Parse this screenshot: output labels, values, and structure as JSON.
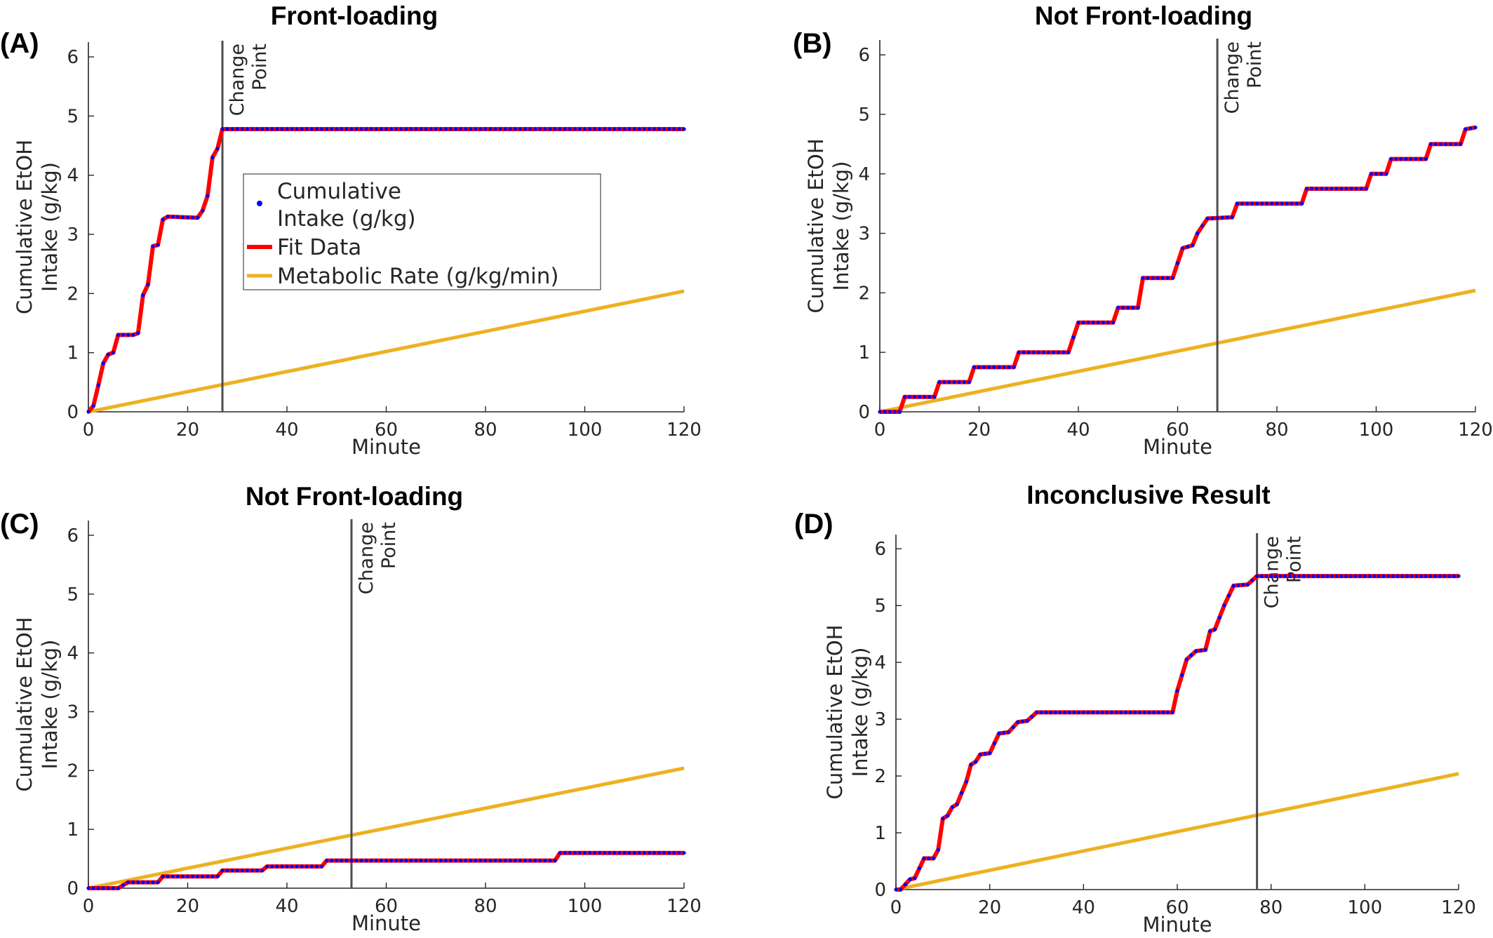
{
  "legend": {
    "entries": [
      {
        "label_line1": "Cumulative",
        "label_line2": "Intake (g/kg)",
        "kind": "marker",
        "color": "#0000ff"
      },
      {
        "label": "Fit Data",
        "kind": "line",
        "color": "#ff0000"
      },
      {
        "label": "Metabolic Rate (g/kg/min)",
        "kind": "line",
        "color": "#edb120"
      }
    ]
  },
  "colors": {
    "intake": "#0000ff",
    "fit": "#ff0000",
    "metabolic": "#edb120",
    "change_point": "#4d4d4d"
  },
  "chart_data": [
    {
      "id": "A",
      "type": "line",
      "panel_label": "(A)",
      "title": "Front-loading",
      "xlabel": "Minute",
      "ylabel_line1": "Cumulative EtOH",
      "ylabel_line2": "Intake (g/kg)",
      "xlim": [
        0,
        120
      ],
      "ylim": [
        0,
        6.25
      ],
      "xticks": [
        0,
        20,
        40,
        60,
        80,
        100,
        120
      ],
      "yticks": [
        0,
        1,
        2,
        3,
        4,
        5,
        6
      ],
      "change_point": 27,
      "change_point_label_line1": "Change",
      "change_point_label_line2": "Point",
      "metabolic_rate": {
        "x": [
          0,
          120
        ],
        "y": [
          0,
          2.04
        ]
      },
      "intake_steps": [
        [
          0,
          0
        ],
        [
          1,
          0.1
        ],
        [
          2,
          0.45
        ],
        [
          3,
          0.82
        ],
        [
          4,
          0.97
        ],
        [
          5,
          1.0
        ],
        [
          6,
          1.3
        ],
        [
          9,
          1.3
        ],
        [
          10,
          1.33
        ],
        [
          11,
          1.97
        ],
        [
          12,
          2.15
        ],
        [
          13,
          2.8
        ],
        [
          14,
          2.82
        ],
        [
          15,
          3.25
        ],
        [
          16,
          3.3
        ],
        [
          22,
          3.28
        ],
        [
          23,
          3.4
        ],
        [
          24,
          3.65
        ],
        [
          25,
          4.3
        ],
        [
          26,
          4.45
        ],
        [
          27,
          4.78
        ],
        [
          120,
          4.78
        ]
      ]
    },
    {
      "id": "B",
      "type": "line",
      "panel_label": "(B)",
      "title": "Not Front-loading",
      "xlabel": "Minute",
      "ylabel_line1": "Cumulative EtOH",
      "ylabel_line2": "Intake (g/kg)",
      "xlim": [
        0,
        120
      ],
      "ylim": [
        0,
        6.25
      ],
      "xticks": [
        0,
        20,
        40,
        60,
        80,
        100,
        120
      ],
      "yticks": [
        0,
        1,
        2,
        3,
        4,
        5,
        6
      ],
      "change_point": 68,
      "change_point_label_line1": "Change",
      "change_point_label_line2": "Point",
      "metabolic_rate": {
        "x": [
          0,
          120
        ],
        "y": [
          0,
          2.04
        ]
      },
      "intake_steps": [
        [
          0,
          0
        ],
        [
          4,
          0
        ],
        [
          5,
          0.25
        ],
        [
          11,
          0.25
        ],
        [
          12,
          0.5
        ],
        [
          18,
          0.5
        ],
        [
          19,
          0.75
        ],
        [
          27,
          0.75
        ],
        [
          28,
          1.0
        ],
        [
          38,
          1.0
        ],
        [
          39,
          1.25
        ],
        [
          40,
          1.5
        ],
        [
          47,
          1.5
        ],
        [
          48,
          1.75
        ],
        [
          52,
          1.75
        ],
        [
          53,
          2.25
        ],
        [
          59,
          2.25
        ],
        [
          60,
          2.5
        ],
        [
          61,
          2.75
        ],
        [
          63,
          2.8
        ],
        [
          64,
          3.0
        ],
        [
          66,
          3.25
        ],
        [
          71,
          3.27
        ],
        [
          72,
          3.5
        ],
        [
          85,
          3.5
        ],
        [
          86,
          3.75
        ],
        [
          98,
          3.75
        ],
        [
          99,
          4.0
        ],
        [
          102,
          4.0
        ],
        [
          103,
          4.25
        ],
        [
          110,
          4.25
        ],
        [
          111,
          4.5
        ],
        [
          117,
          4.5
        ],
        [
          118,
          4.75
        ],
        [
          120,
          4.78
        ]
      ]
    },
    {
      "id": "C",
      "type": "line",
      "panel_label": "(C)",
      "title": "Not Front-loading",
      "xlabel": "Minute",
      "ylabel_line1": "Cumulative EtOH",
      "ylabel_line2": "Intake (g/kg)",
      "xlim": [
        0,
        120
      ],
      "ylim": [
        0,
        6.25
      ],
      "xticks": [
        0,
        20,
        40,
        60,
        80,
        100,
        120
      ],
      "yticks": [
        0,
        1,
        2,
        3,
        4,
        5,
        6
      ],
      "change_point": 53,
      "change_point_label_line1": "Change",
      "change_point_label_line2": "Point",
      "metabolic_rate": {
        "x": [
          0,
          120
        ],
        "y": [
          0,
          2.04
        ]
      },
      "intake_steps": [
        [
          0,
          0
        ],
        [
          6,
          0
        ],
        [
          7,
          0.05
        ],
        [
          8,
          0.1
        ],
        [
          14,
          0.1
        ],
        [
          15,
          0.2
        ],
        [
          26,
          0.2
        ],
        [
          27,
          0.3
        ],
        [
          35,
          0.3
        ],
        [
          36,
          0.37
        ],
        [
          47,
          0.37
        ],
        [
          48,
          0.47
        ],
        [
          94,
          0.47
        ],
        [
          95,
          0.6
        ],
        [
          120,
          0.6
        ]
      ]
    },
    {
      "id": "D",
      "type": "line",
      "panel_label": "(D)",
      "title": "Inconclusive Result",
      "xlabel": "Minute",
      "ylabel_line1": "Cumulative EtOH",
      "ylabel_line2": "Intake (g/kg)",
      "xlim": [
        0,
        120
      ],
      "ylim": [
        0,
        6.25
      ],
      "xticks": [
        0,
        20,
        40,
        60,
        80,
        100,
        120
      ],
      "yticks": [
        0,
        1,
        2,
        3,
        4,
        5,
        6
      ],
      "change_point": 77,
      "change_point_label_line1": "Change",
      "change_point_label_line2": "Point",
      "metabolic_rate": {
        "x": [
          0,
          120
        ],
        "y": [
          0,
          2.04
        ]
      },
      "intake_steps": [
        [
          0,
          0
        ],
        [
          1,
          0
        ],
        [
          3,
          0.18
        ],
        [
          4,
          0.2
        ],
        [
          6,
          0.55
        ],
        [
          8,
          0.55
        ],
        [
          9,
          0.7
        ],
        [
          10,
          1.25
        ],
        [
          11,
          1.3
        ],
        [
          12,
          1.45
        ],
        [
          13,
          1.5
        ],
        [
          15,
          1.9
        ],
        [
          16,
          2.2
        ],
        [
          17,
          2.25
        ],
        [
          18,
          2.38
        ],
        [
          20,
          2.4
        ],
        [
          22,
          2.75
        ],
        [
          24,
          2.77
        ],
        [
          26,
          2.95
        ],
        [
          28,
          2.97
        ],
        [
          30,
          3.12
        ],
        [
          59,
          3.12
        ],
        [
          60,
          3.5
        ],
        [
          62,
          4.05
        ],
        [
          64,
          4.2
        ],
        [
          66,
          4.22
        ],
        [
          67,
          4.55
        ],
        [
          68,
          4.58
        ],
        [
          70,
          5.0
        ],
        [
          72,
          5.35
        ],
        [
          75,
          5.37
        ],
        [
          77,
          5.52
        ],
        [
          120,
          5.52
        ]
      ]
    }
  ]
}
